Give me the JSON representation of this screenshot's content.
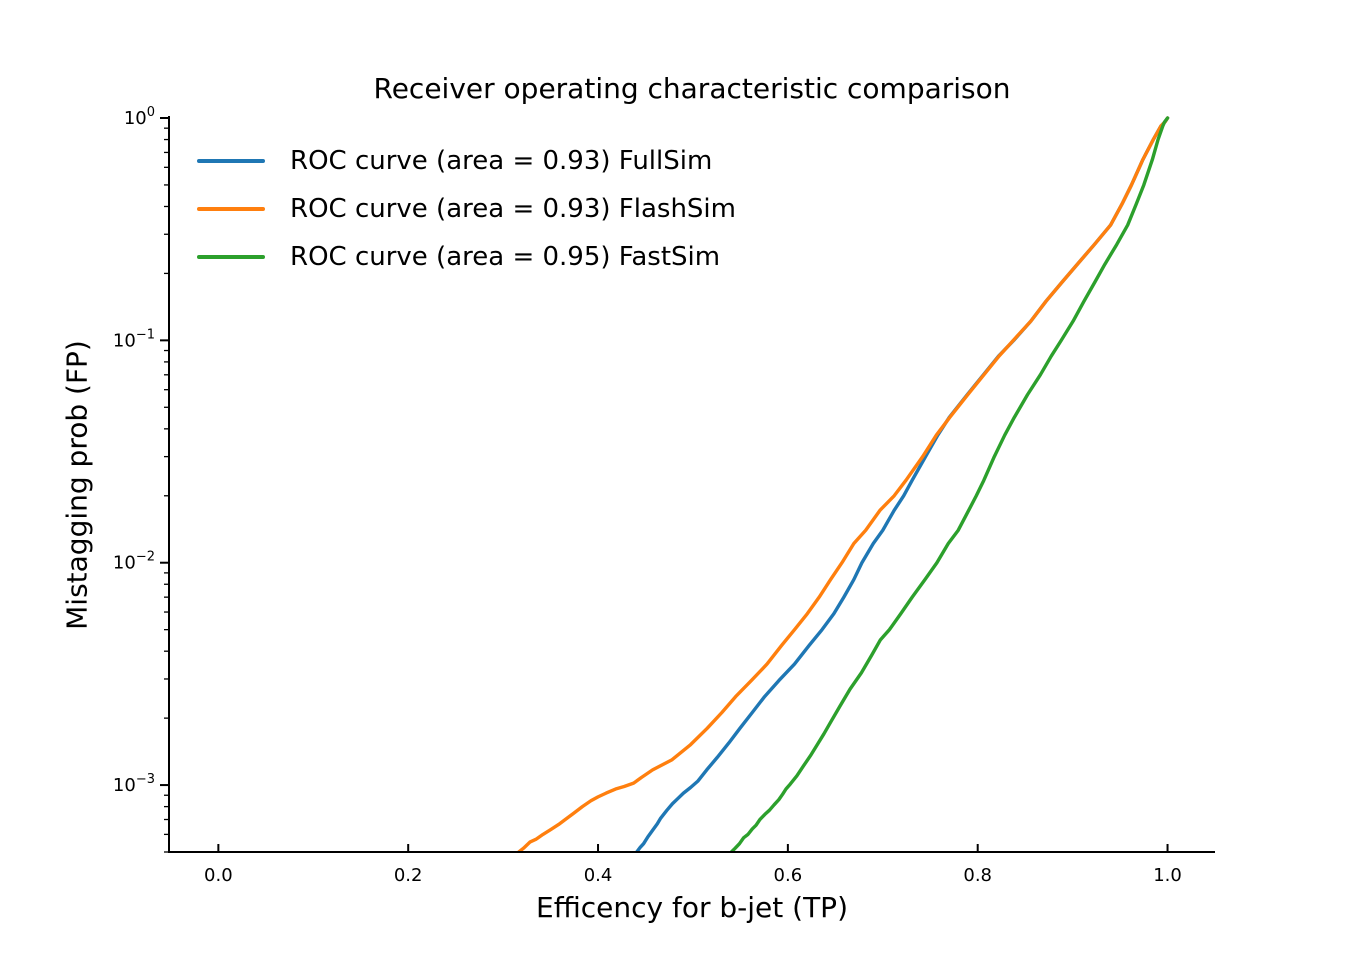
{
  "chart_data": {
    "type": "line",
    "title": "Receiver operating characteristic comparison",
    "xlabel": "Efficency for b-jet (TP)",
    "ylabel": "Mistagging prob (FP)",
    "x_scale": "linear",
    "y_scale": "log",
    "xlim": [
      -0.052,
      1.05
    ],
    "ylim": [
      0.0005,
      1.0
    ],
    "grid": false,
    "legend_position": "upper left",
    "background_color": "#ffffff",
    "text_color": "#000000",
    "x_ticks": [
      {
        "v": 0.0,
        "label": "0.0"
      },
      {
        "v": 0.2,
        "label": "0.2"
      },
      {
        "v": 0.4,
        "label": "0.4"
      },
      {
        "v": 0.6,
        "label": "0.6"
      },
      {
        "v": 0.8,
        "label": "0.8"
      },
      {
        "v": 1.0,
        "label": "1.0"
      }
    ],
    "y_ticks": [
      {
        "v": 1.0,
        "base": "10",
        "exp": "0"
      },
      {
        "v": 0.1,
        "base": "10",
        "exp": "−1"
      },
      {
        "v": 0.01,
        "base": "10",
        "exp": "−2"
      },
      {
        "v": 0.001,
        "base": "10",
        "exp": "−3"
      }
    ],
    "series": [
      {
        "name": "FullSim",
        "label": "ROC curve (area = 0.93) FullSim",
        "area": 0.93,
        "color": "#1f77b4",
        "points": [
          [
            0.436,
            0.00044
          ],
          [
            0.44,
            0.000495
          ],
          [
            0.4445,
            0.000525
          ],
          [
            0.448,
            0.000545
          ],
          [
            0.4525,
            0.000585
          ],
          [
            0.458,
            0.00063
          ],
          [
            0.4625,
            0.00067
          ],
          [
            0.466,
            0.00071
          ],
          [
            0.4725,
            0.00077
          ],
          [
            0.4785,
            0.000825
          ],
          [
            0.4835,
            0.000865
          ],
          [
            0.49,
            0.00092
          ],
          [
            0.4975,
            0.000975
          ],
          [
            0.505,
            0.00104
          ],
          [
            0.5145,
            0.00117
          ],
          [
            0.5255,
            0.00133
          ],
          [
            0.538,
            0.00155
          ],
          [
            0.5495,
            0.0018
          ],
          [
            0.5625,
            0.00212
          ],
          [
            0.5755,
            0.0025
          ],
          [
            0.5905,
            0.00295
          ],
          [
            0.607,
            0.0035
          ],
          [
            0.6225,
            0.00425
          ],
          [
            0.636,
            0.005
          ],
          [
            0.6485,
            0.0059
          ],
          [
            0.659,
            0.007
          ],
          [
            0.6695,
            0.0084
          ],
          [
            0.678,
            0.01
          ],
          [
            0.69,
            0.0122
          ],
          [
            0.7,
            0.014
          ],
          [
            0.712,
            0.0172
          ],
          [
            0.722,
            0.02
          ],
          [
            0.731,
            0.0235
          ],
          [
            0.745,
            0.03
          ],
          [
            0.758,
            0.0375
          ],
          [
            0.77,
            0.045
          ],
          [
            0.789,
            0.057
          ],
          [
            0.806,
            0.07
          ],
          [
            0.822,
            0.085
          ],
          [
            0.838,
            0.1
          ],
          [
            0.856,
            0.122
          ],
          [
            0.872,
            0.15
          ],
          [
            0.889,
            0.183
          ],
          [
            0.905,
            0.22
          ],
          [
            0.923,
            0.27
          ],
          [
            0.94,
            0.33
          ],
          [
            0.952,
            0.41
          ],
          [
            0.962,
            0.5
          ],
          [
            0.974,
            0.65
          ],
          [
            0.985,
            0.8
          ],
          [
            0.993,
            0.92
          ],
          [
            0.9975,
            0.962
          ],
          [
            1.0,
            1.0
          ]
        ]
      },
      {
        "name": "FlashSim",
        "label": "ROC curve (area = 0.93) FlashSim",
        "area": 0.93,
        "color": "#ff7f0e",
        "points": [
          [
            0.31,
            0.00044
          ],
          [
            0.3165,
            0.0005
          ],
          [
            0.3215,
            0.00052
          ],
          [
            0.3285,
            0.000555
          ],
          [
            0.3345,
            0.00057
          ],
          [
            0.342,
            0.0006
          ],
          [
            0.35,
            0.00063
          ],
          [
            0.3585,
            0.000665
          ],
          [
            0.3655,
            0.0007
          ],
          [
            0.374,
            0.000745
          ],
          [
            0.3835,
            0.0008
          ],
          [
            0.3925,
            0.00085
          ],
          [
            0.4,
            0.000885
          ],
          [
            0.4085,
            0.00092
          ],
          [
            0.4185,
            0.00096
          ],
          [
            0.4275,
            0.000985
          ],
          [
            0.4375,
            0.00102
          ],
          [
            0.4455,
            0.00108
          ],
          [
            0.4575,
            0.00117
          ],
          [
            0.478,
            0.0013
          ],
          [
            0.4975,
            0.00152
          ],
          [
            0.515,
            0.0018
          ],
          [
            0.5305,
            0.00212
          ],
          [
            0.545,
            0.0025
          ],
          [
            0.5615,
            0.00295
          ],
          [
            0.578,
            0.0035
          ],
          [
            0.5935,
            0.00425
          ],
          [
            0.607,
            0.005
          ],
          [
            0.6205,
            0.0059
          ],
          [
            0.633,
            0.007
          ],
          [
            0.645,
            0.0084
          ],
          [
            0.657,
            0.01
          ],
          [
            0.6695,
            0.0122
          ],
          [
            0.682,
            0.014
          ],
          [
            0.697,
            0.0172
          ],
          [
            0.712,
            0.02
          ],
          [
            0.7245,
            0.0235
          ],
          [
            0.742,
            0.03
          ],
          [
            0.7565,
            0.0375
          ],
          [
            0.7705,
            0.045
          ],
          [
            0.7895,
            0.057
          ],
          [
            0.8065,
            0.07
          ],
          [
            0.8225,
            0.085
          ],
          [
            0.8375,
            0.1
          ],
          [
            0.856,
            0.122
          ],
          [
            0.872,
            0.15
          ],
          [
            0.889,
            0.183
          ],
          [
            0.905,
            0.22
          ],
          [
            0.923,
            0.27
          ],
          [
            0.94,
            0.33
          ],
          [
            0.952,
            0.41
          ],
          [
            0.962,
            0.5
          ],
          [
            0.974,
            0.65
          ],
          [
            0.985,
            0.8
          ],
          [
            0.993,
            0.92
          ],
          [
            0.9975,
            0.962
          ],
          [
            1.0,
            1.0
          ]
        ]
      },
      {
        "name": "FastSim",
        "label": "ROC curve (area = 0.95) FastSim",
        "area": 0.95,
        "color": "#2ca02c",
        "points": [
          [
            0.535,
            0.00044
          ],
          [
            0.5405,
            0.0005
          ],
          [
            0.5445,
            0.00052
          ],
          [
            0.549,
            0.000545
          ],
          [
            0.5535,
            0.00058
          ],
          [
            0.558,
            0.0006
          ],
          [
            0.5625,
            0.000635
          ],
          [
            0.5665,
            0.00066
          ],
          [
            0.5705,
            0.0007
          ],
          [
            0.576,
            0.00074
          ],
          [
            0.5805,
            0.00077
          ],
          [
            0.5855,
            0.000815
          ],
          [
            0.5905,
            0.00086
          ],
          [
            0.5945,
            0.00091
          ],
          [
            0.598,
            0.00096
          ],
          [
            0.6025,
            0.00101
          ],
          [
            0.6095,
            0.0011
          ],
          [
            0.6165,
            0.00122
          ],
          [
            0.6245,
            0.00137
          ],
          [
            0.631,
            0.00152
          ],
          [
            0.638,
            0.0017
          ],
          [
            0.6445,
            0.0019
          ],
          [
            0.6545,
            0.00225
          ],
          [
            0.6655,
            0.0027
          ],
          [
            0.6775,
            0.0032
          ],
          [
            0.6885,
            0.00385
          ],
          [
            0.6975,
            0.0045
          ],
          [
            0.707,
            0.005
          ],
          [
            0.719,
            0.0059
          ],
          [
            0.731,
            0.007
          ],
          [
            0.7445,
            0.0084
          ],
          [
            0.757,
            0.01
          ],
          [
            0.769,
            0.0122
          ],
          [
            0.7795,
            0.014
          ],
          [
            0.7905,
            0.0172
          ],
          [
            0.7985,
            0.02
          ],
          [
            0.8065,
            0.0235
          ],
          [
            0.8175,
            0.03
          ],
          [
            0.8285,
            0.0375
          ],
          [
            0.8385,
            0.045
          ],
          [
            0.8525,
            0.057
          ],
          [
            0.866,
            0.07
          ],
          [
            0.8775,
            0.085
          ],
          [
            0.888,
            0.1
          ],
          [
            0.9005,
            0.122
          ],
          [
            0.912,
            0.15
          ],
          [
            0.9235,
            0.183
          ],
          [
            0.934,
            0.22
          ],
          [
            0.9465,
            0.27
          ],
          [
            0.958,
            0.33
          ],
          [
            0.967,
            0.41
          ],
          [
            0.975,
            0.5
          ],
          [
            0.984,
            0.65
          ],
          [
            0.99,
            0.8
          ],
          [
            0.995,
            0.92
          ],
          [
            0.997,
            0.962
          ],
          [
            1.0,
            1.0
          ]
        ]
      }
    ]
  }
}
